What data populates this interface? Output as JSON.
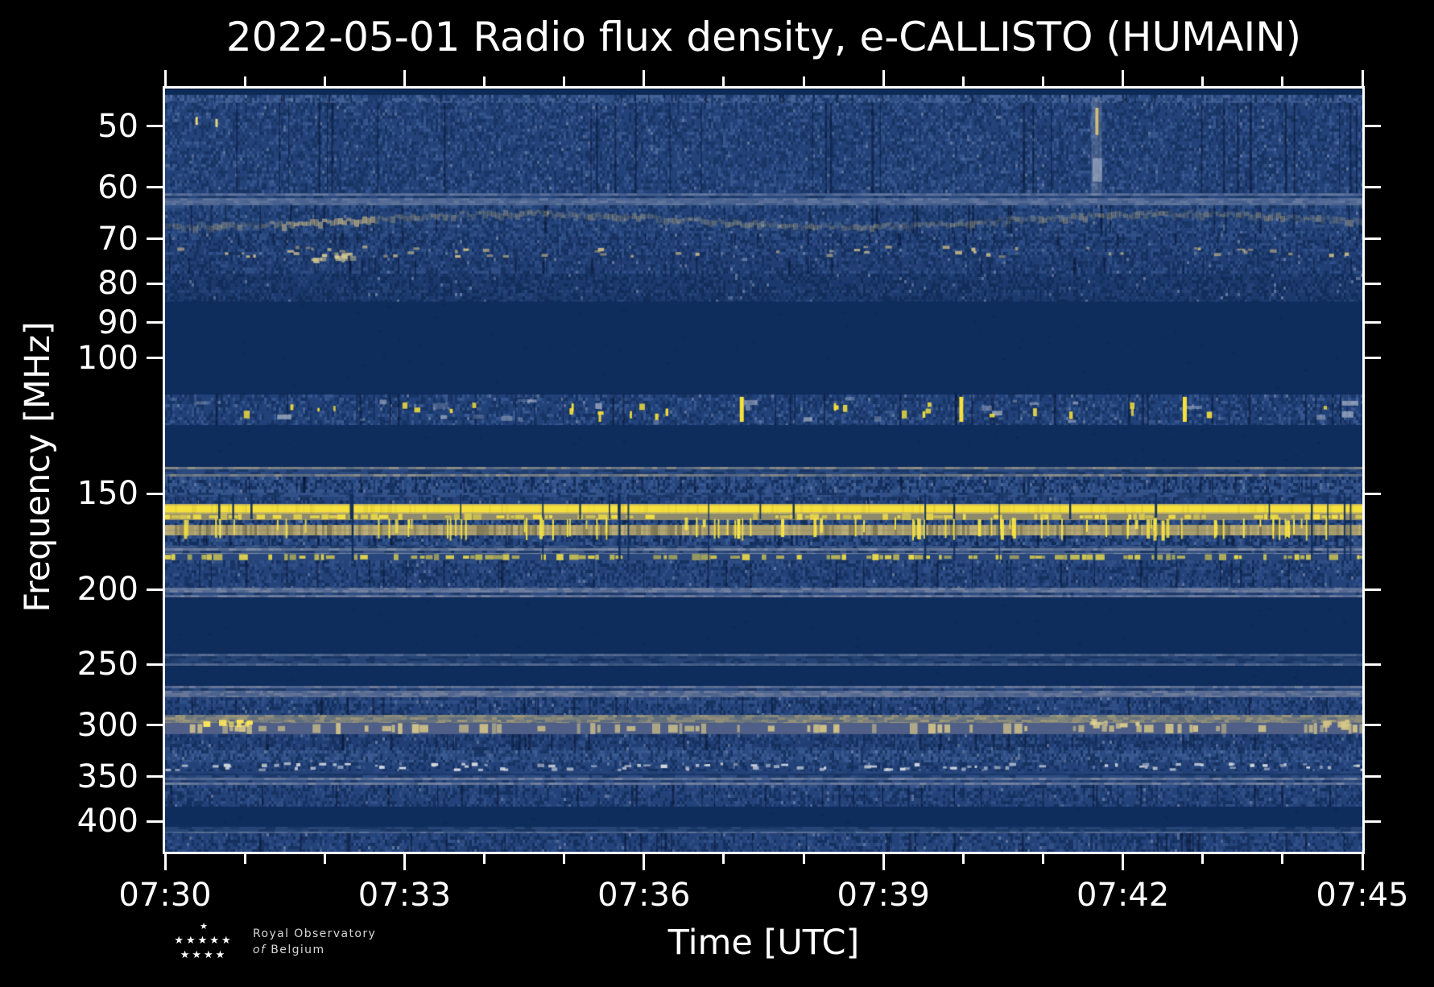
{
  "chart_data": {
    "type": "heatmap",
    "title": "2022-05-01 Radio flux density, e-CALLISTO (HUMAIN)",
    "date": "2022-05-01",
    "network": "e-CALLISTO",
    "station": "HUMAIN",
    "xlabel": "Time [UTC]",
    "ylabel": "Frequency [MHz]",
    "x_start_utc": "07:30",
    "x_end_utc": "07:45",
    "x_major_step_min": 3,
    "x_minor_step_min": 1,
    "x_tick_labels": [
      "07:30",
      "07:33",
      "07:36",
      "07:39",
      "07:42",
      "07:45"
    ],
    "y_scale": "log",
    "y_increases_downward": true,
    "y_min_mhz": 44.65,
    "y_max_mhz": 438.1,
    "y_ticks_mhz": [
      50,
      60,
      70,
      80,
      90,
      100,
      150,
      200,
      250,
      300,
      350,
      400
    ],
    "colormap": {
      "quiet_low": "#0e2c5c",
      "background_noise": "#24437a",
      "elevated": "#3a5a93",
      "gray_rfi": "#8893aa",
      "tan_rfi": "#a79c6d",
      "strong_rfi_yellow": "#f6e13c"
    },
    "bands": [
      {
        "f": [
          44.7,
          45.5
        ],
        "style": "flat",
        "c": "#0c2a57"
      },
      {
        "f": [
          45.5,
          46.6
        ],
        "style": "noise",
        "base": "#2e4f86",
        "mix": "#4a679b",
        "dark": "#1a3766",
        "darkP": 0.28,
        "lightP": 0.3,
        "vdark": true
      },
      {
        "f": [
          46.6,
          61.1
        ],
        "style": "noise",
        "base": "#24437a",
        "mix": "#3a5a93",
        "dark": "#16325f",
        "darkP": 0.3,
        "lightP": 0.2,
        "vdark": true
      },
      {
        "f": [
          61.1,
          63.3
        ],
        "style": "rows",
        "base": "#2b4a80",
        "row": "#6d7fa2",
        "rowP": 0.5
      },
      {
        "f": [
          63.3,
          68.9
        ],
        "style": "wavy",
        "base": "#24437a",
        "mix": "#35568c",
        "dark": "#16325f",
        "smudge": "#c0b183",
        "bright_t1": 1.45,
        "bright_t2": 2.6
      },
      {
        "f": [
          68.9,
          71.4
        ],
        "style": "noise",
        "base": "#223f75",
        "mix": "#31528a",
        "dark": "#142f5c",
        "darkP": 0.3,
        "lightP": 0.18,
        "vdark": true
      },
      {
        "f": [
          71.4,
          74.1
        ],
        "style": "specks",
        "base": "#223f75",
        "mix": "#31528a",
        "dark": "#142f5c",
        "fg": "#c6b686",
        "density": 0.04
      },
      {
        "f": [
          74.1,
          77.7
        ],
        "style": "noise",
        "base": "#223f75",
        "mix": "#31528a",
        "dark": "#142f5c",
        "darkP": 0.3,
        "lightP": 0.16,
        "vdark": true
      },
      {
        "f": [
          77.7,
          84.5
        ],
        "style": "noise",
        "base": "#1d3a6e",
        "mix": "#28477c",
        "dark": "#122c58",
        "darkP": 0.38,
        "lightP": 0.12
      },
      {
        "f": [
          84.5,
          111.5
        ],
        "style": "flat",
        "c": "#0e2c5c"
      },
      {
        "f": [
          111.5,
          122.2
        ],
        "style": "airband",
        "base": "#22427a",
        "mix": "#3a5a92",
        "dark": "#15315f",
        "soft": "#b6bfd1",
        "fg": "#f6e13c",
        "tall_t": [
          7.2,
          9.95,
          12.75
        ]
      },
      {
        "f": [
          122.2,
          138.5
        ],
        "style": "flat",
        "c": "#0e2c5c"
      },
      {
        "f": [
          138.5,
          142.6
        ],
        "style": "rows",
        "base": "#2b4a80",
        "row": "#9b9786",
        "rowP": 0.45
      },
      {
        "f": [
          142.6,
          149.6
        ],
        "style": "noise",
        "base": "#27477e",
        "mix": "#3a5a92",
        "dark": "#122c58",
        "darkP": 0.3,
        "lightP": 0.3,
        "vdark": true
      },
      {
        "f": [
          149.6,
          151.7
        ],
        "style": "rows",
        "base": "#33528a",
        "row": "#8d96ac",
        "rowP": 0.5
      },
      {
        "f": [
          151.7,
          154.8
        ],
        "style": "noise",
        "base": "#24437a",
        "mix": "#33528a",
        "dark": "#142f5c",
        "darkP": 0.3,
        "lightP": 0.2,
        "vdark": true
      },
      {
        "f": [
          154.8,
          159.3
        ],
        "style": "yellow",
        "c": "#f6e13c",
        "edge": "#c2b468"
      },
      {
        "f": [
          159.3,
          162.4
        ],
        "style": "dash",
        "bg": "#8d8a6d",
        "fg": "#f2df45",
        "fill": 0.5
      },
      {
        "f": [
          162.4,
          164.8
        ],
        "style": "noise",
        "base": "#27477e",
        "mix": "#3a5a92",
        "dark": "#122c58",
        "darkP": 0.32,
        "lightP": 0.2,
        "vdark": true
      },
      {
        "f": [
          164.8,
          170.0
        ],
        "style": "tan",
        "base": "#a79c6d",
        "mix": "#beb079",
        "dark": "#7d7655"
      },
      {
        "f": [
          170.0,
          175.4
        ],
        "style": "noise",
        "base": "#27477e",
        "mix": "#3a5a92",
        "dark": "#122c58",
        "darkP": 0.32,
        "lightP": 0.25,
        "vdark": true
      },
      {
        "f": [
          175.4,
          179.7
        ],
        "style": "rows",
        "base": "#3a5584",
        "row": "#8893aa",
        "rowP": 0.55
      },
      {
        "f": [
          179.7,
          183.2
        ],
        "style": "dash",
        "bg": "#28467c",
        "fg": "#e9d94b",
        "fill": 0.6
      },
      {
        "f": [
          183.2,
          198.9
        ],
        "style": "noise",
        "base": "#24437a",
        "mix": "#33528a",
        "dark": "#142f5c",
        "darkP": 0.3,
        "lightP": 0.2,
        "vdark": true
      },
      {
        "f": [
          198.9,
          204.7
        ],
        "style": "rows",
        "base": "#2e4d83",
        "row": "#7f8aa5",
        "rowP": 0.5
      },
      {
        "f": [
          204.7,
          242.3
        ],
        "style": "flat",
        "c": "#0e2c5c"
      },
      {
        "f": [
          242.3,
          251.2
        ],
        "style": "rows",
        "base": "#274677",
        "row": "#5e7094",
        "rowP": 0.4
      },
      {
        "f": [
          251.2,
          266.7
        ],
        "style": "flat",
        "c": "#0e2c5c"
      },
      {
        "f": [
          266.7,
          275.9
        ],
        "style": "rows",
        "base": "#2b4a81",
        "row": "#78839e",
        "rowP": 0.5
      },
      {
        "f": [
          275.9,
          290.9
        ],
        "style": "noise",
        "base": "#24437a",
        "mix": "#33528a",
        "dark": "#142f5c",
        "darkP": 0.3,
        "lightP": 0.2,
        "vdark": true
      },
      {
        "f": [
          290.9,
          298.0
        ],
        "style": "rows",
        "base": "#2e4d83",
        "row": "#a59c79",
        "rowP": 0.5
      },
      {
        "f": [
          298.0,
          308.2
        ],
        "style": "dash",
        "bg": "#4f5f87",
        "fg": "#cfc188",
        "fill": 0.45
      },
      {
        "f": [
          308.2,
          323.4
        ],
        "style": "noise",
        "base": "#223f75",
        "mix": "#31528a",
        "dark": "#142f5c",
        "darkP": 0.32,
        "lightP": 0.18,
        "vdark": true
      },
      {
        "f": [
          323.4,
          335.3
        ],
        "style": "noise",
        "base": "#2a4a80",
        "mix": "#3d5d95",
        "dark": "#16325f",
        "darkP": 0.28,
        "lightP": 0.28
      },
      {
        "f": [
          335.3,
          344.3
        ],
        "style": "specks",
        "base": "#24437a",
        "mix": "#33528a",
        "dark": "#142f5c",
        "fg": "#d3d8e0",
        "density": 0.07
      },
      {
        "f": [
          344.3,
          348.5
        ],
        "style": "rows",
        "base": "#1c3a6e",
        "row": "#2c4a7e",
        "rowP": 0.5
      },
      {
        "f": [
          348.5,
          358.7
        ],
        "style": "rows",
        "base": "#2e4d83",
        "row": "#7e89a4",
        "rowP": 0.5
      },
      {
        "f": [
          358.7,
          382.8
        ],
        "style": "noise",
        "base": "#24437a",
        "mix": "#33528a",
        "dark": "#142f5c",
        "darkP": 0.3,
        "lightP": 0.18,
        "vdark": true
      },
      {
        "f": [
          382.8,
          406.6
        ],
        "style": "flat",
        "c": "#0e2c5c"
      },
      {
        "f": [
          406.6,
          414.5
        ],
        "style": "rows",
        "base": "#274677",
        "row": "#697a9b",
        "rowP": 0.4
      },
      {
        "f": [
          414.5,
          438.1
        ],
        "style": "noise",
        "base": "#24437a",
        "mix": "#33528a",
        "dark": "#142f5c",
        "darkP": 0.3,
        "lightP": 0.2,
        "vdark": true
      }
    ],
    "features": {
      "bursts": {
        "f1": 161.8,
        "f2": 171.5,
        "color": "#f8e644",
        "count": 95,
        "cluster_t": [
          3.2,
          5.0,
          6.9,
          8.2,
          9.3,
          10.1,
          11.0,
          11.9,
          12.8,
          13.6,
          14.4
        ]
      },
      "dropouts": {
        "f1": 150.0,
        "f2": 183.5,
        "color": "#0f2d5e",
        "count": 26
      },
      "vstreak": {
        "t": 11.67,
        "f1": 45.8,
        "f2": 61.5,
        "w": 13,
        "tint": "rgba(160,172,198,0.30)",
        "core_f1": 47.3,
        "core_f2": 51.3,
        "core_color": "#dcc87c"
      },
      "speck_color": "#e8d77f",
      "upper_specks": [
        {
          "t": 0.38,
          "f": 48.6
        },
        {
          "t": 0.63,
          "f": 48.9
        }
      ],
      "beige_cluster": {
        "t1": 1.8,
        "t2": 2.35,
        "f1": 72.8,
        "f2": 74.6,
        "color": "#d9cc90",
        "count": 14
      },
      "band300_clusters": [
        {
          "t1": 0.35,
          "t2": 1.05,
          "f1": 295,
          "f2": 300,
          "color": "#ffe95a",
          "count": 7
        },
        {
          "t1": 11.5,
          "t2": 12.2,
          "f1": 294,
          "f2": 299,
          "color": "#e2d28e",
          "count": 8
        },
        {
          "t1": 14.45,
          "t2": 14.9,
          "f1": 294,
          "f2": 300,
          "color": "#d9c987",
          "count": 6
        }
      ]
    }
  },
  "logo": {
    "line1": "Royal Observatory",
    "line2_italic": "of",
    "line2_rest": "Belgium",
    "star_rows": [
      1,
      5,
      4
    ],
    "star_glyph": "★"
  }
}
